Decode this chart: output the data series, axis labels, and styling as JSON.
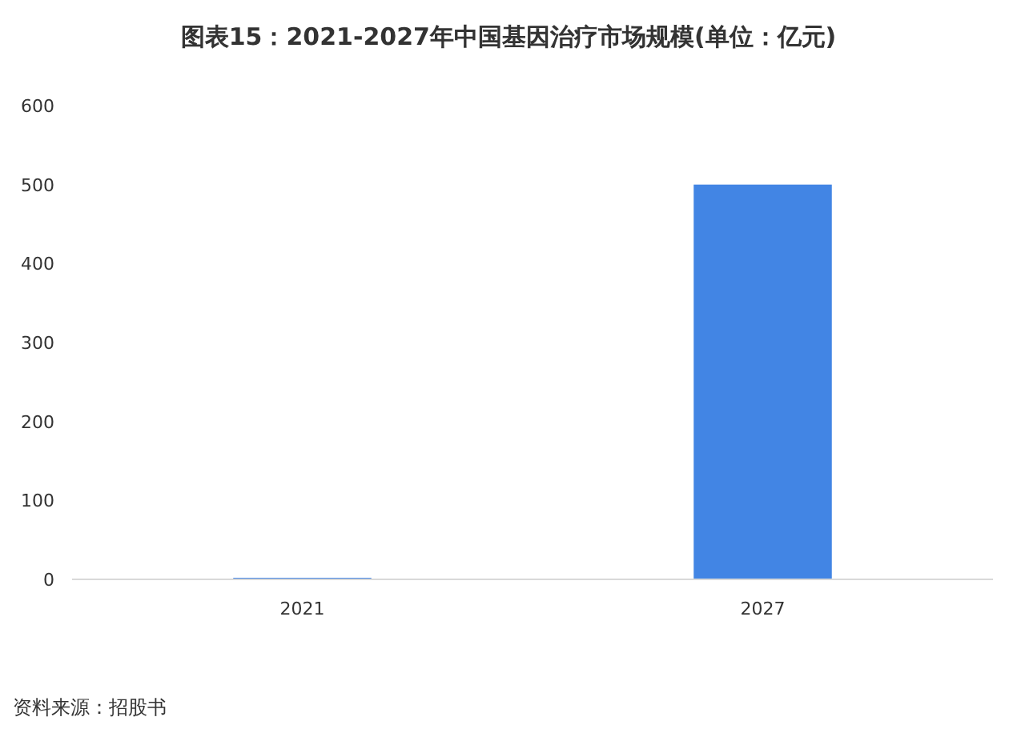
{
  "chart_data": {
    "type": "bar",
    "title": "图表15：2021-2027年中国基因治疗市场规模(单位：亿元)",
    "categories": [
      "2021",
      "2027"
    ],
    "values": [
      2,
      500
    ],
    "color": "#4285e4",
    "ylim": [
      0,
      600
    ],
    "yticks": [
      0,
      100,
      200,
      300,
      400,
      500,
      600
    ],
    "grid": false,
    "annotations": [
      "资料来源：招股书"
    ]
  }
}
